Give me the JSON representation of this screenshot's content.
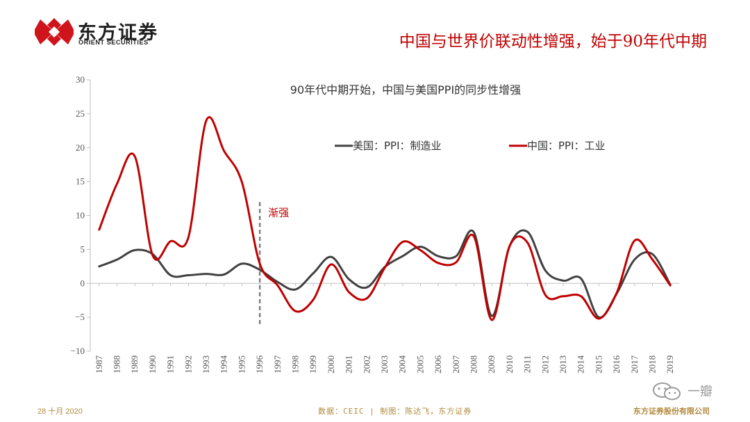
{
  "brand": {
    "name_cn": "东方证券",
    "name_en": "ORIENT SECURITIES",
    "logo_color": "#d0141c"
  },
  "headline": "中国与世界价联动性增强，始于90年代中期",
  "chart_data": {
    "type": "line",
    "title": "90年代中期开始，中国与美国PPI的同步性增强",
    "categories": [
      "1987",
      "1988",
      "1989",
      "1990",
      "1991",
      "1992",
      "1993",
      "1994",
      "1995",
      "1996",
      "1997",
      "1998",
      "1999",
      "2000",
      "2001",
      "2002",
      "2003",
      "2004",
      "2005",
      "2006",
      "2007",
      "2008",
      "2009",
      "2010",
      "2011",
      "2012",
      "2013",
      "2014",
      "2015",
      "2016",
      "2017",
      "2018",
      "2019"
    ],
    "y_ticks": [
      30,
      25,
      20,
      15,
      10,
      5,
      0,
      -5,
      -10
    ],
    "y_tick_labels": [
      "30",
      "25",
      "20",
      "15",
      "10",
      "5",
      "0",
      "−5",
      "−10"
    ],
    "ylim": [
      -10,
      30
    ],
    "series": [
      {
        "name": "美国：PPI：制造业",
        "color": "#404040",
        "values": [
          2.5,
          3.5,
          4.9,
          4.3,
          1.2,
          1.2,
          1.4,
          1.3,
          2.9,
          2.0,
          0.2,
          -0.9,
          1.5,
          3.9,
          0.6,
          -0.6,
          2.4,
          4.0,
          5.4,
          4.0,
          4.0,
          7.5,
          -4.8,
          5.5,
          7.6,
          1.9,
          0.4,
          0.7,
          -5.0,
          -1.5,
          3.5,
          4.3,
          -0.2
        ]
      },
      {
        "name": "中国：PPI：工业",
        "color": "#c00000",
        "values": [
          7.9,
          14.7,
          18.7,
          4.1,
          6.2,
          6.8,
          24.0,
          19.5,
          14.9,
          2.9,
          -0.3,
          -4.1,
          -2.4,
          2.8,
          -1.3,
          -2.2,
          2.3,
          6.1,
          4.9,
          3.0,
          3.1,
          6.9,
          -5.4,
          5.5,
          6.0,
          -1.7,
          -1.9,
          -1.9,
          -5.2,
          -1.4,
          6.3,
          3.5,
          -0.3
        ]
      }
    ],
    "annotation": {
      "label": "渐强",
      "year": "1996",
      "y_from": 12,
      "y_to": -6
    },
    "legend_position": "top-center",
    "grid": false
  },
  "footer": {
    "date": "28 十月 2020",
    "source": "数据：CEIC | 制图：陈达飞，东方证券",
    "company": "东方证券股份有限公司"
  },
  "watermark": {
    "text": "一瓣",
    "icon": "wechat-icon"
  }
}
